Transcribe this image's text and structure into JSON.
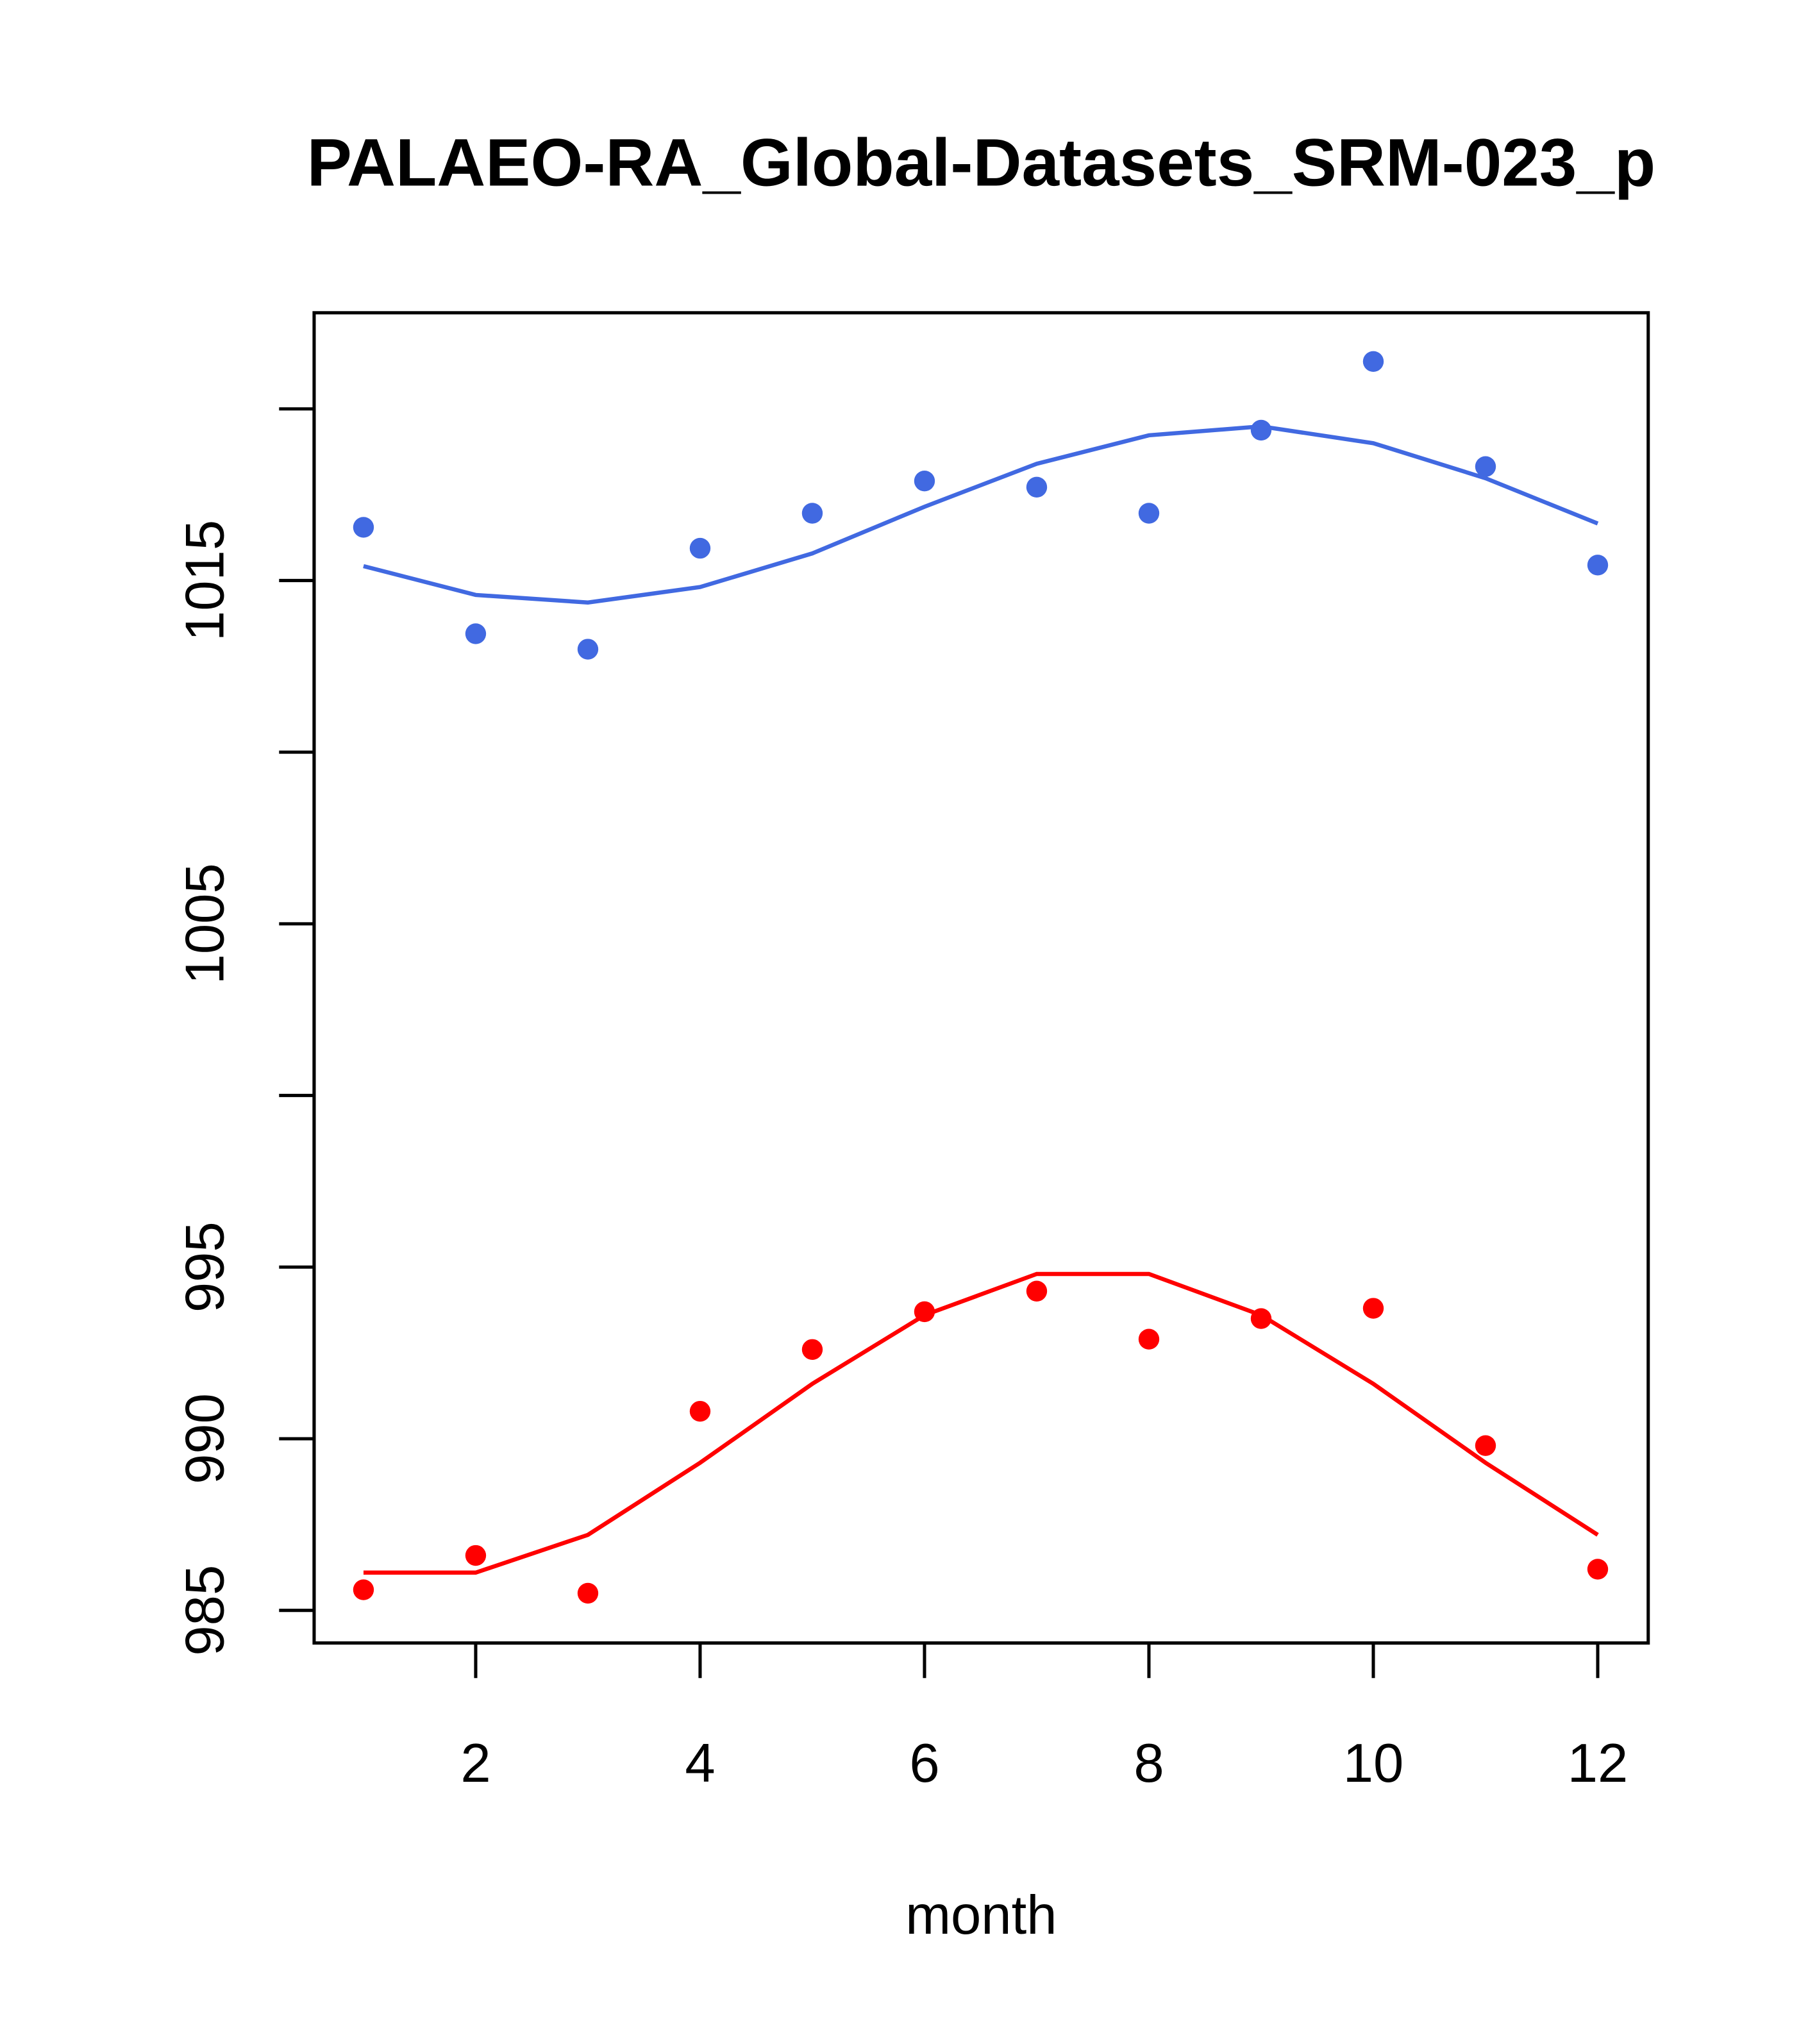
{
  "chart_data": {
    "type": "scatter",
    "title": "PALAEO-RA_Global-Datasets_SRM-023_p",
    "xlabel": "month",
    "ylabel": "",
    "xlim": [
      0.56,
      12.45
    ],
    "ylim": [
      984.05,
      1022.8
    ],
    "xticks": [
      2,
      4,
      6,
      8,
      10,
      12
    ],
    "xtick_labels": [
      "2",
      "4",
      "6",
      "8",
      "10",
      "12"
    ],
    "yticks": [
      985,
      990,
      995,
      1000,
      1005,
      1010,
      1015,
      1020
    ],
    "ytick_labels": [
      "985",
      "990",
      "995",
      "",
      "1005",
      "",
      "1015",
      ""
    ],
    "grid": false,
    "x": [
      1,
      2,
      3,
      4,
      5,
      6,
      7,
      8,
      9,
      10,
      11,
      12
    ],
    "series": [
      {
        "name": "upper points",
        "kind": "points",
        "color": "#4169E1",
        "values": [
          1016.55,
          1013.45,
          1013.0,
          1015.94,
          1016.96,
          1017.9,
          1017.72,
          1016.96,
          1019.38,
          1021.38,
          1018.32,
          1015.45
        ]
      },
      {
        "name": "upper line",
        "kind": "line",
        "color": "#4169E1",
        "values": [
          1015.42,
          1014.58,
          1014.36,
          1014.81,
          1015.79,
          1017.15,
          1018.4,
          1019.23,
          1019.49,
          1019.0,
          1017.98,
          1016.66
        ]
      },
      {
        "name": "lower points",
        "kind": "points",
        "color": "#FF0000",
        "values": [
          985.6,
          986.6,
          985.5,
          990.8,
          992.6,
          993.7,
          994.3,
          992.9,
          993.5,
          993.8,
          989.8,
          986.2
        ]
      },
      {
        "name": "lower line",
        "kind": "line",
        "color": "#FF0000",
        "values": [
          986.1,
          986.1,
          987.2,
          989.3,
          991.6,
          993.6,
          994.8,
          994.8,
          993.6,
          991.6,
          989.3,
          987.2
        ]
      }
    ]
  }
}
